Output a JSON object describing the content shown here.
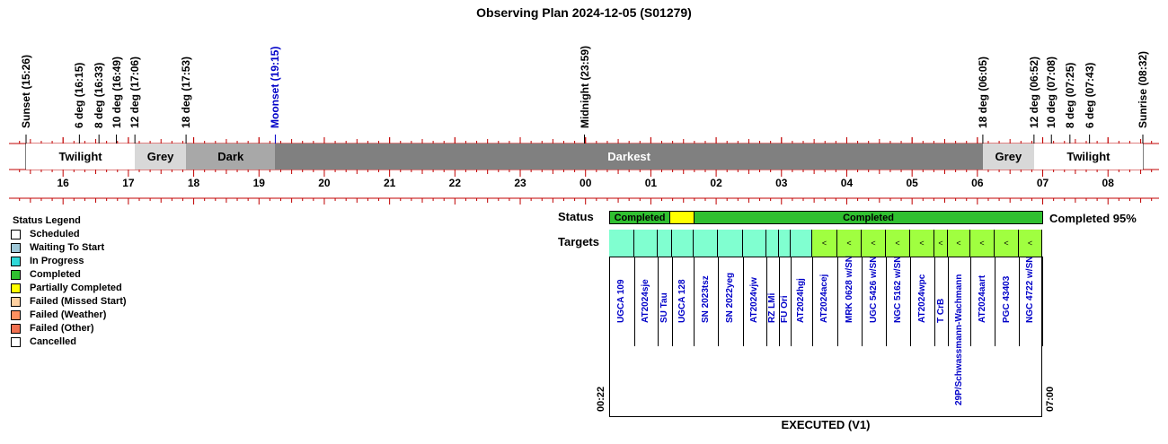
{
  "title": "Observing Plan 2024-12-05 (S01279)",
  "events": [
    {
      "label": "Sunset (15:26)",
      "color": "black"
    },
    {
      "label": "6 deg (16:15)",
      "color": "black"
    },
    {
      "label": "8 deg (16:33)",
      "color": "black"
    },
    {
      "label": "10 deg (16:49)",
      "color": "black"
    },
    {
      "label": "12 deg (17:06)",
      "color": "black"
    },
    {
      "label": "18 deg (17:53)",
      "color": "black"
    },
    {
      "label": "Moonset (19:15)",
      "color": "blue"
    },
    {
      "label": "Midnight (23:59)",
      "color": "black"
    },
    {
      "label": "18 deg (06:05)",
      "color": "black"
    },
    {
      "label": "12 deg (06:52)",
      "color": "black"
    },
    {
      "label": "10 deg (07:08)",
      "color": "black"
    },
    {
      "label": "8 deg (07:25)",
      "color": "black"
    },
    {
      "label": "6 deg (07:43)",
      "color": "black"
    },
    {
      "label": "Sunrise (08:32)",
      "color": "black"
    }
  ],
  "segments": [
    {
      "label": "Twilight",
      "color": "#ffffff"
    },
    {
      "label": "Grey",
      "color": "#d8d8d8"
    },
    {
      "label": "Dark",
      "color": "#a8a8a8"
    },
    {
      "label": "Darkest",
      "color": "#808080"
    },
    {
      "label": "Grey",
      "color": "#d8d8d8"
    },
    {
      "label": "Twilight",
      "color": "#ffffff"
    }
  ],
  "hours": [
    "16",
    "17",
    "18",
    "19",
    "20",
    "21",
    "22",
    "23",
    "00",
    "01",
    "02",
    "03",
    "04",
    "05",
    "06",
    "07",
    "08"
  ],
  "legend": {
    "title": "Status Legend",
    "items": [
      {
        "label": "Scheduled",
        "color": "#ffffff"
      },
      {
        "label": "Waiting To Start",
        "color": "#9fc8d8"
      },
      {
        "label": "In Progress",
        "color": "#30d8d8"
      },
      {
        "label": "Completed",
        "color": "#30c030"
      },
      {
        "label": "Partially Completed",
        "color": "#ffff00"
      },
      {
        "label": "Failed (Missed Start)",
        "color": "#ffd0a0"
      },
      {
        "label": "Failed (Weather)",
        "color": "#ff9060"
      },
      {
        "label": "Failed (Other)",
        "color": "#f07050"
      },
      {
        "label": "Cancelled",
        "color": "#ffffff"
      }
    ]
  },
  "status_label": "Status",
  "targets_label": "Targets",
  "status_blocks": [
    {
      "label": "Completed",
      "color": "#30c030"
    },
    {
      "label": "",
      "color": "#ffff00"
    },
    {
      "label": "Completed",
      "color": "#30c030"
    }
  ],
  "completion": "Completed 95%",
  "start_time": "00:22",
  "end_time": "07:00",
  "footer": "EXECUTED (V1)",
  "targets": [
    {
      "name": "UGCA 109",
      "color": "#80ffd0",
      "mark": ""
    },
    {
      "name": "AT2024sje",
      "color": "#80ffd0",
      "mark": ""
    },
    {
      "name": "SU Tau",
      "color": "#80ffd0",
      "mark": ""
    },
    {
      "name": "UGCA 128",
      "color": "#80ffd0",
      "mark": ""
    },
    {
      "name": "SN 2023tsz",
      "color": "#80ffd0",
      "mark": ""
    },
    {
      "name": "SN 2022yeg",
      "color": "#80ffd0",
      "mark": ""
    },
    {
      "name": "AT2024vjw",
      "color": "#80ffd0",
      "mark": ""
    },
    {
      "name": "RZ LMi",
      "color": "#80ffd0",
      "mark": ""
    },
    {
      "name": "FU Ori",
      "color": "#80ffd0",
      "mark": ""
    },
    {
      "name": "AT2024hgj",
      "color": "#80ffd0",
      "mark": ""
    },
    {
      "name": "AT2024acej",
      "color": "#a0ff40",
      "mark": "<"
    },
    {
      "name": "MRK 0628 w/SN",
      "color": "#a0ff40",
      "mark": "<"
    },
    {
      "name": "UGC 5426 w/SN",
      "color": "#a0ff40",
      "mark": "<"
    },
    {
      "name": "NGC 5162 w/SN",
      "color": "#a0ff40",
      "mark": "<"
    },
    {
      "name": "AT2024wpc",
      "color": "#a0ff40",
      "mark": "<"
    },
    {
      "name": "T CrB",
      "color": "#a0ff40",
      "mark": "<"
    },
    {
      "name": "29P/Schwassmann-Wachmann",
      "color": "#a0ff40",
      "mark": "<"
    },
    {
      "name": "AT2024aart",
      "color": "#a0ff40",
      "mark": "<"
    },
    {
      "name": "PGC 43403",
      "color": "#a0ff40",
      "mark": "<"
    },
    {
      "name": "NGC 4722 w/SN",
      "color": "#a0ff40",
      "mark": "<"
    }
  ]
}
